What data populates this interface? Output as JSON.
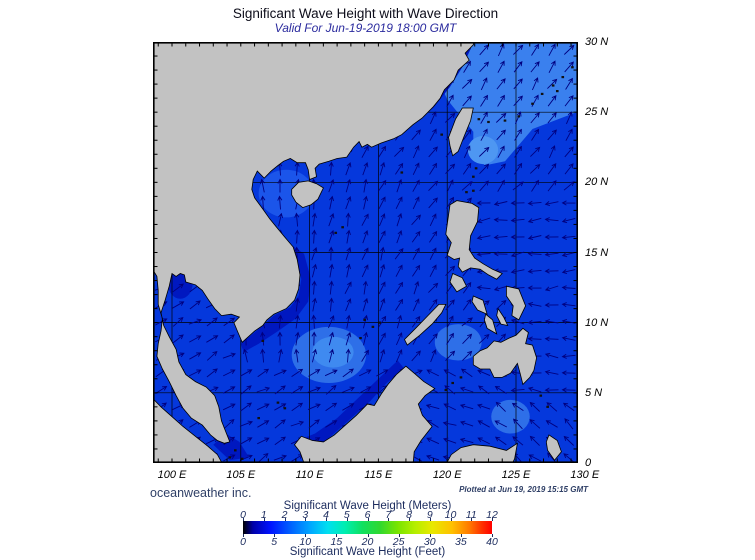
{
  "title": "Significant Wave Height with Wave Direction",
  "subtitle": "Valid For Jun-19-2019 18:00 GMT",
  "credit": "oceanweather inc.",
  "plotted": "Plotted at Jun 19, 2019 15:15 GMT",
  "map": {
    "lat_labels": [
      "30 N",
      "25 N",
      "20 N",
      "15 N",
      "10 N",
      "5 N",
      "0"
    ],
    "lon_labels": [
      "100 E",
      "105 E",
      "110 E",
      "115 E",
      "120 E",
      "125 E",
      "130 E"
    ],
    "colors": {
      "land": "#c2c2c2",
      "coastline": "#000000",
      "sea_base": "#0538dc",
      "sea_dark_band": "#0018c0",
      "sea_light": "#2e6fe8",
      "sea_lighter": "#3f8af0",
      "sea_band_ne": "#3a80ee",
      "sea_spot": "#4e97f2",
      "sea_tonkin": "#1b55ea",
      "arrow": "#000080",
      "grid": "#000000"
    }
  },
  "colorbar": {
    "title_meters": "Significant Wave Height (Meters)",
    "title_feet": "Significant Wave Height (Feet)",
    "meter_ticks": [
      "0",
      "1",
      "2",
      "3",
      "4",
      "5",
      "6",
      "7",
      "8",
      "9",
      "10",
      "11",
      "12"
    ],
    "feet_ticks": [
      "0",
      "5",
      "10",
      "15",
      "20",
      "25",
      "30",
      "35",
      "40"
    ]
  }
}
